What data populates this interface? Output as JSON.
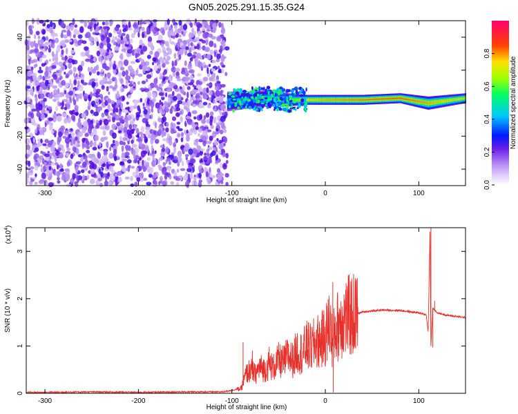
{
  "title": "GN05.2025.291.15.35.G24",
  "chart_data": [
    {
      "type": "heatmap",
      "xlabel": "Height of straight line (km)",
      "ylabel": "Frequency (Hz)",
      "xlim": [
        -320,
        150
      ],
      "ylim": [
        -50,
        50
      ],
      "xticks": [
        -300,
        -200,
        -100,
        0,
        100
      ],
      "yticks": [
        -40,
        -20,
        0,
        20,
        40
      ],
      "xtick_labels": [
        "-300",
        "-200",
        "-100",
        "0",
        "100"
      ],
      "ytick_labels": [
        "-40",
        "-20",
        "0",
        "20",
        "40"
      ],
      "colorbar": {
        "label": "Normalized spectral amplitude",
        "range": [
          0,
          1
        ],
        "ticks": [
          0.0,
          0.2,
          0.4,
          0.6,
          0.8
        ],
        "tick_labels": [
          "0.0",
          "0.2",
          "0.4",
          "0.6",
          "0.8"
        ],
        "colormap": [
          "#ffffff",
          "#b088f0",
          "#5000e0",
          "#0030ff",
          "#00c8ff",
          "#00ff60",
          "#a0ff00",
          "#ffd000",
          "#ff4000",
          "#ff0060"
        ]
      },
      "features": [
        {
          "name": "noise",
          "x_range": [
            -320,
            -105
          ],
          "y_range": [
            -50,
            50
          ],
          "level": 0.25
        },
        {
          "name": "band",
          "x": [
            -105,
            -80,
            -60,
            -40,
            -20,
            0,
            40,
            80,
            110,
            150
          ],
          "center_y": [
            1,
            2,
            3,
            2,
            2,
            2,
            2,
            3,
            0,
            3
          ],
          "half_width_y": [
            6,
            5,
            5,
            4,
            3,
            3,
            3,
            3,
            4,
            3
          ],
          "peak_level": [
            0.45,
            0.5,
            0.55,
            0.6,
            0.8,
            0.85,
            0.9,
            0.92,
            0.85,
            0.75
          ]
        }
      ]
    },
    {
      "type": "line",
      "xlabel": "Height of straight line (km)",
      "ylabel": "SNR (10 * v/v)",
      "y_multiplier": "(x10",
      "y_multiplier_exp": "4",
      "y_multiplier_close": ")",
      "xlim": [
        -320,
        150
      ],
      "ylim": [
        0,
        3.5
      ],
      "xticks": [
        -300,
        -200,
        -100,
        0,
        100
      ],
      "yticks": [
        0,
        1,
        2,
        3
      ],
      "xtick_labels": [
        "-300",
        "-200",
        "-100",
        "0",
        "100"
      ],
      "ytick_labels": [
        "0",
        "1",
        "2",
        "3"
      ],
      "color": "#e8302a",
      "series": [
        {
          "x": [
            -320,
            -300,
            -250,
            -200,
            -150,
            -110,
            -90,
            -85,
            -80,
            -75,
            -70,
            -65,
            -60,
            -55,
            -50,
            -45,
            -40,
            -35,
            -30,
            -25,
            -20,
            -15,
            -10,
            -5,
            0,
            5,
            8,
            10,
            15,
            20,
            30,
            40,
            60,
            80,
            100,
            105,
            108,
            110,
            112,
            113,
            115,
            117,
            120,
            130,
            150
          ],
          "y": [
            0.02,
            0.02,
            0.03,
            0.02,
            0.03,
            0.03,
            0.1,
            0.4,
            0.5,
            0.4,
            0.55,
            0.5,
            0.6,
            0.55,
            0.7,
            0.65,
            0.8,
            0.7,
            0.9,
            0.85,
            1.0,
            0.95,
            1.1,
            1.1,
            1.2,
            1.5,
            1.0,
            1.3,
            1.5,
            1.6,
            1.65,
            1.72,
            1.76,
            1.75,
            1.7,
            1.68,
            1.65,
            1.3,
            3.4,
            1.0,
            1.8,
            1.75,
            1.7,
            1.65,
            1.6
          ],
          "spikes": [
            {
              "x": -88,
              "y": 1.08
            },
            {
              "x": -78,
              "y": 0.9
            },
            {
              "x": -60,
              "y": 0.98
            },
            {
              "x": -40,
              "y": 1.05
            },
            {
              "x": -20,
              "y": 1.25
            },
            {
              "x": -18,
              "y": 1.5
            },
            {
              "x": 8,
              "y": 2.35
            },
            {
              "x": 8.5,
              "y": 0.02
            },
            {
              "x": 15,
              "y": 1.8
            },
            {
              "x": 113,
              "y": 3.5
            },
            {
              "x": 115,
              "y": 0.97
            },
            {
              "x": 117,
              "y": 1.95
            }
          ]
        }
      ]
    }
  ]
}
